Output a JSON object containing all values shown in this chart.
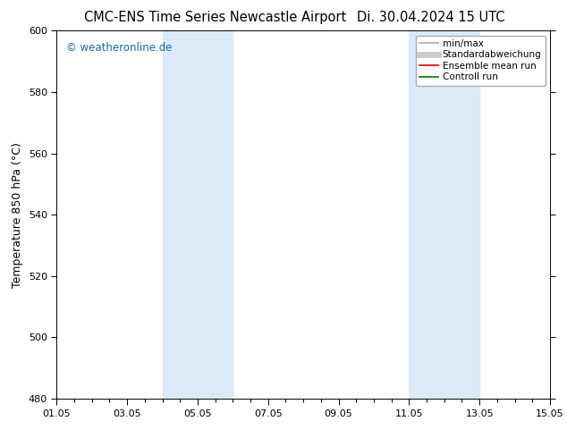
{
  "title_left": "CMC-ENS Time Series Newcastle Airport",
  "title_right": "Di. 30.04.2024 15 UTC",
  "ylabel": "Temperature 850 hPa (°C)",
  "ylim": [
    480,
    600
  ],
  "yticks": [
    480,
    500,
    520,
    540,
    560,
    580,
    600
  ],
  "xlim": [
    0,
    14
  ],
  "xtick_positions": [
    0,
    2,
    4,
    6,
    8,
    10,
    12,
    14
  ],
  "xtick_labels": [
    "01.05",
    "03.05",
    "05.05",
    "07.05",
    "09.05",
    "11.05",
    "13.05",
    "15.05"
  ],
  "shaded_bands": [
    {
      "xmin": 3.0,
      "xmax": 5.0
    },
    {
      "xmin": 10.0,
      "xmax": 12.0
    }
  ],
  "band_color": "#daeaf6",
  "watermark": "© weatheronline.de",
  "watermark_color": "#1a6ba0",
  "legend_entries": [
    {
      "label": "min/max",
      "color": "#aaaaaa",
      "lw": 1.2
    },
    {
      "label": "Standardabweichung",
      "color": "#cccccc",
      "lw": 5
    },
    {
      "label": "Ensemble mean run",
      "color": "#dd0000",
      "lw": 1.2
    },
    {
      "label": "Controll run",
      "color": "#007700",
      "lw": 1.2
    }
  ],
  "bg_color": "#ffffff",
  "title_fontsize": 10.5,
  "ylabel_fontsize": 9,
  "tick_fontsize": 8,
  "watermark_fontsize": 8.5,
  "legend_fontsize": 7.5
}
